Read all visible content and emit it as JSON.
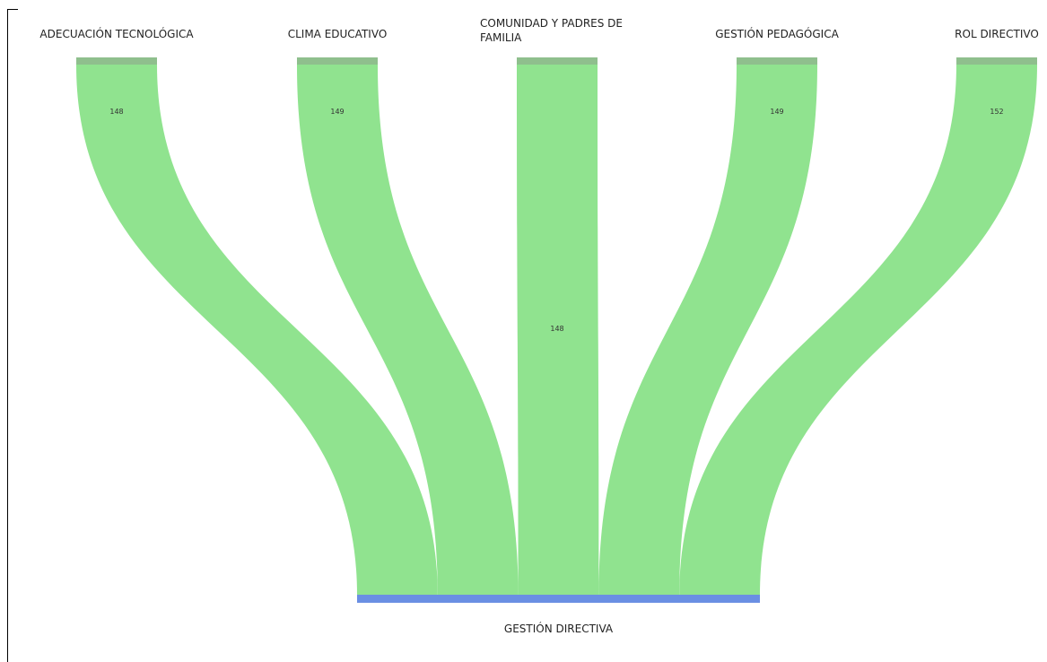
{
  "chart_data": {
    "type": "sankey",
    "nodes": {
      "sources": [
        {
          "label_lines": [
            "ADECUACIÓN TECNOLÓGICA"
          ]
        },
        {
          "label_lines": [
            "CLIMA EDUCATIVO"
          ]
        },
        {
          "label_lines": [
            "COMUNIDAD Y PADRES DE",
            "FAMILIA"
          ]
        },
        {
          "label_lines": [
            "GESTIÓN PEDAGÓGICA"
          ]
        },
        {
          "label_lines": [
            "ROL DIRECTIVO"
          ]
        }
      ],
      "target": {
        "label": "GESTIÓN DIRECTIVA"
      }
    },
    "links": [
      {
        "value": 148,
        "value_label": "148"
      },
      {
        "value": 149,
        "value_label": "149"
      },
      {
        "value": 148,
        "value_label": "148"
      },
      {
        "value": 149,
        "value_label": "149"
      },
      {
        "value": 152,
        "value_label": "152"
      }
    ],
    "colors": {
      "link": "#90e38f",
      "source_node": "#8fbf8d",
      "target_node": "#6a8fe3"
    }
  }
}
